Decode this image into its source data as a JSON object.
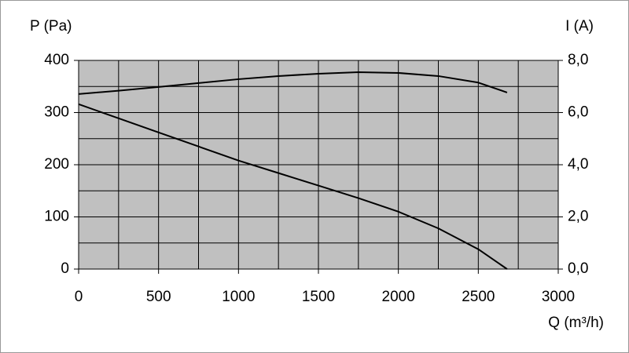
{
  "chart_data": {
    "type": "line",
    "ylabel": "P (Pa)",
    "y2label": "I (A)",
    "xlabel": "Q (m³/h)",
    "x": [
      0,
      250,
      500,
      750,
      1000,
      1250,
      1500,
      1750,
      2000,
      2250,
      2500,
      2680
    ],
    "series": [
      {
        "color": "#000000",
        "values": [
          316,
          289,
          262,
          235,
          208,
          184,
          160,
          136,
          110,
          78,
          38,
          0
        ]
      },
      {
        "color": "#000000",
        "axis": "y2",
        "values": [
          6.71,
          6.84,
          6.98,
          7.13,
          7.28,
          7.4,
          7.49,
          7.55,
          7.52,
          7.4,
          7.15,
          6.77
        ]
      }
    ],
    "xlim": [
      0,
      3000
    ],
    "xticks": [
      0,
      500,
      1000,
      1500,
      2000,
      2500,
      3000
    ],
    "ylim": [
      0,
      400
    ],
    "yticks": [
      0,
      100,
      200,
      300,
      400
    ],
    "y2lim": [
      0,
      8
    ],
    "y2ticks": [
      {
        "value": 0,
        "label": "0,0"
      },
      {
        "value": 2,
        "label": "2,0"
      },
      {
        "value": 4,
        "label": "4,0"
      },
      {
        "value": 6,
        "label": "6,0"
      },
      {
        "value": 8,
        "label": "8,0"
      }
    ],
    "xgrid": [
      250,
      500,
      750,
      1000,
      1250,
      1500,
      1750,
      2000,
      2250,
      2500,
      2750
    ],
    "ygrid": [
      50,
      100,
      150,
      200,
      250,
      300,
      350
    ],
    "plot_color": "#c0c0c0"
  }
}
